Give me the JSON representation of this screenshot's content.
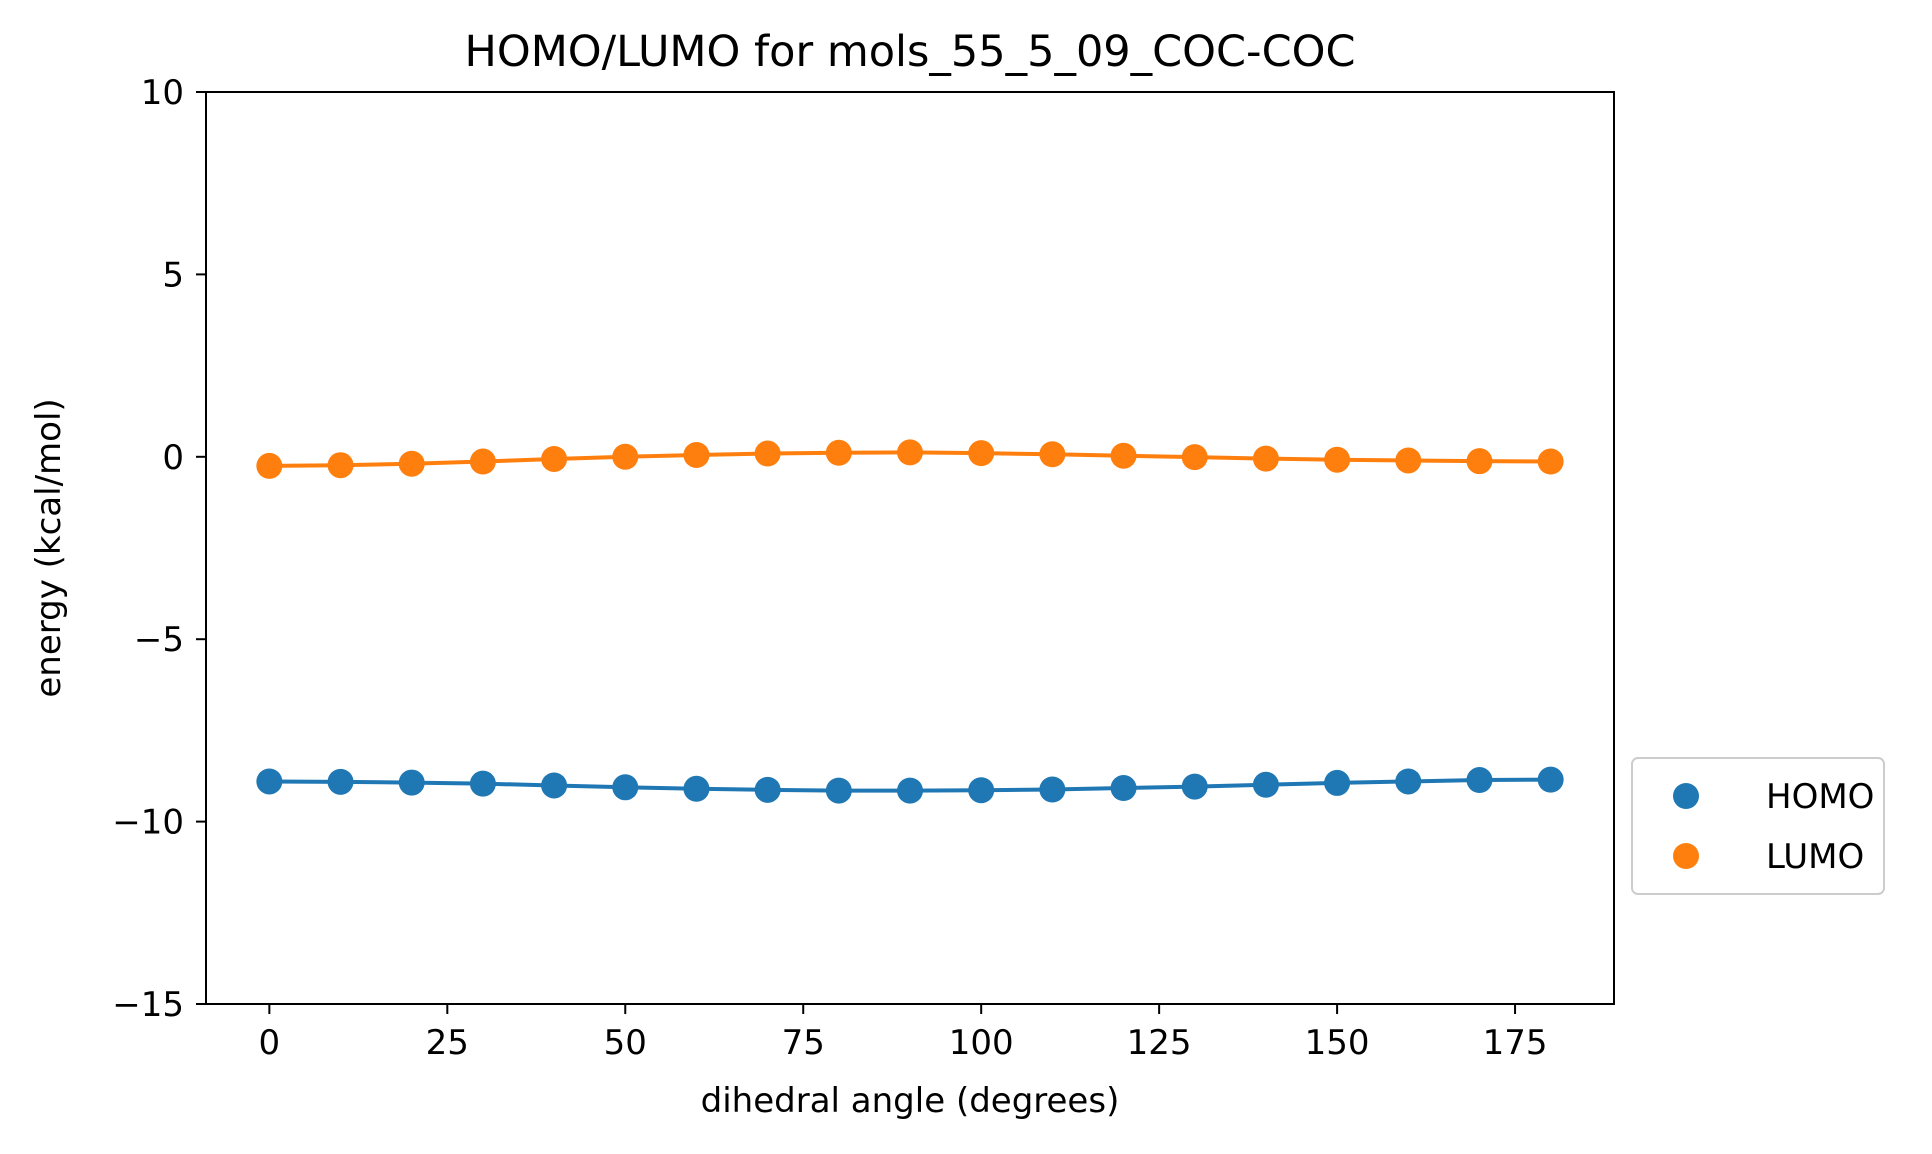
{
  "chart_data": {
    "type": "line",
    "title": "HOMO/LUMO for mols_55_5_09_COC-COC",
    "xlabel": "dihedral angle (degrees)",
    "ylabel": "energy (kcal/mol)",
    "xlim": [
      -8.9,
      188.9
    ],
    "ylim": [
      -15,
      10
    ],
    "xticks": [
      0,
      25,
      50,
      75,
      100,
      125,
      150,
      175
    ],
    "yticks": [
      10,
      5,
      0,
      -5,
      -10,
      -15
    ],
    "xtick_labels": [
      "0",
      "25",
      "50",
      "75",
      "100",
      "125",
      "150",
      "175"
    ],
    "ytick_labels": [
      "10",
      "5",
      "0",
      "−5",
      "−10",
      "−15"
    ],
    "grid": false,
    "legend_position": "outside-right",
    "x": [
      0,
      10,
      20,
      30,
      40,
      50,
      60,
      70,
      80,
      90,
      100,
      110,
      120,
      130,
      140,
      150,
      160,
      170,
      180
    ],
    "series": [
      {
        "name": "HOMO",
        "color": "#1f77b4",
        "values": [
          -8.9,
          -8.91,
          -8.93,
          -8.96,
          -9.01,
          -9.06,
          -9.1,
          -9.13,
          -9.15,
          -9.15,
          -9.14,
          -9.12,
          -9.08,
          -9.04,
          -8.99,
          -8.94,
          -8.9,
          -8.86,
          -8.85
        ]
      },
      {
        "name": "LUMO",
        "color": "#ff7f0e",
        "values": [
          -0.25,
          -0.23,
          -0.19,
          -0.13,
          -0.06,
          0.0,
          0.05,
          0.09,
          0.11,
          0.12,
          0.1,
          0.07,
          0.03,
          -0.01,
          -0.05,
          -0.08,
          -0.1,
          -0.12,
          -0.13
        ]
      }
    ]
  }
}
